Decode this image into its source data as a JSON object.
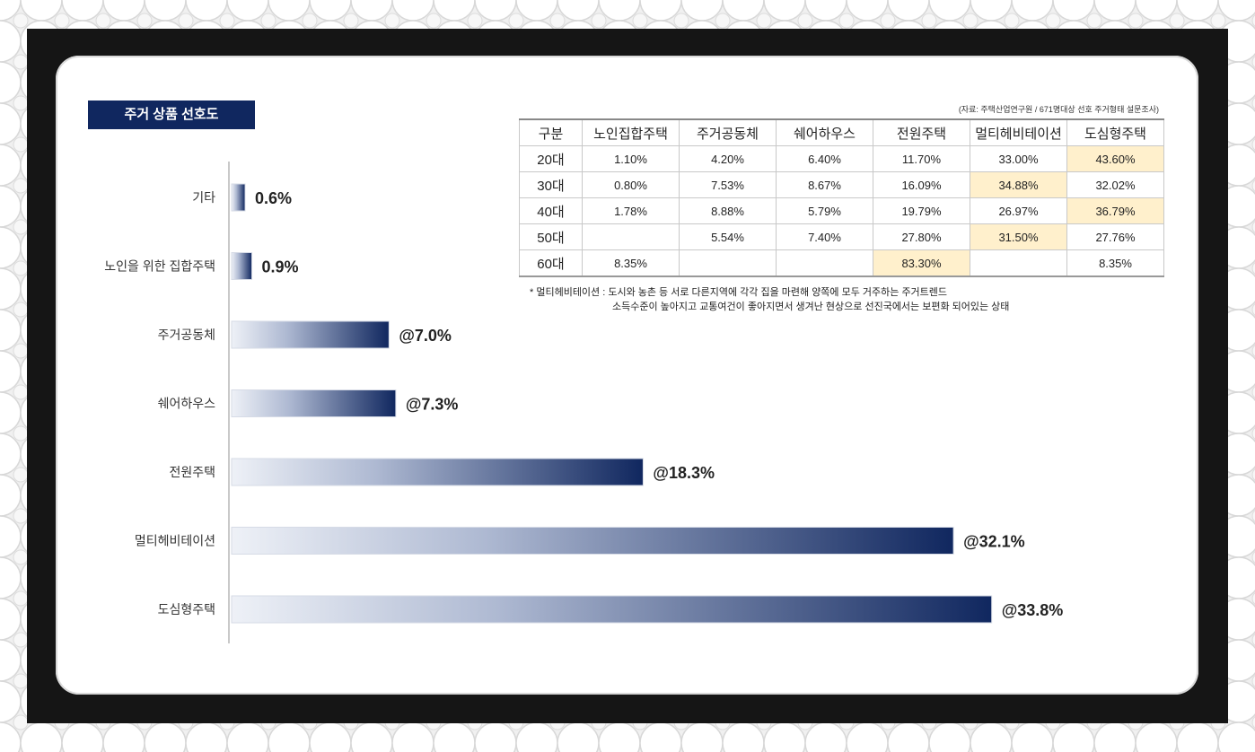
{
  "title": "주거 상품 선호도",
  "source_note": "(자료: 주택산업연구원 / 671명대상 선호 주거형태 설문조사)",
  "table": {
    "header": [
      "구분",
      "노인집합주택",
      "주거공동체",
      "쉐어하우스",
      "전원주택",
      "멀티헤비테이션",
      "도심형주택"
    ],
    "rows": [
      {
        "label": "20대",
        "cells": [
          "1.10%",
          "4.20%",
          "6.40%",
          "11.70%",
          "33.00%",
          "43.60%"
        ],
        "highlight": [
          5
        ]
      },
      {
        "label": "30대",
        "cells": [
          "0.80%",
          "7.53%",
          "8.67%",
          "16.09%",
          "34.88%",
          "32.02%"
        ],
        "highlight": [
          4
        ]
      },
      {
        "label": "40대",
        "cells": [
          "1.78%",
          "8.88%",
          "5.79%",
          "19.79%",
          "26.97%",
          "36.79%"
        ],
        "highlight": [
          5
        ]
      },
      {
        "label": "50대",
        "cells": [
          "",
          "5.54%",
          "7.40%",
          "27.80%",
          "31.50%",
          "27.76%"
        ],
        "highlight": [
          4
        ]
      },
      {
        "label": "60대",
        "cells": [
          "8.35%",
          "",
          "",
          "83.30%",
          "",
          "8.35%"
        ],
        "highlight": [
          3
        ]
      }
    ]
  },
  "footnote": {
    "line1": "* 멀티헤비테이션 : 도시와 농촌 등 서로 다른지역에 각각 집을 마련해 양쪽에 모두 거주하는 주거트렌드",
    "line2": "소득수준이 높아지고 교통여건이 좋아지면서 생겨난 현상으로 선진국에서는 보편화 되어있는 상태"
  },
  "colors": {
    "navy": "#10275f",
    "bar_start": "#eef1f7",
    "highlight": "#fff0cc"
  },
  "chart_data": {
    "type": "bar",
    "orientation": "horizontal",
    "categories": [
      "기타",
      "노인을 위한 집합주택",
      "주거공동체",
      "쉐어하우스",
      "전원주택",
      "멀티헤비테이션",
      "도심형주택"
    ],
    "values": [
      0.6,
      0.9,
      7.0,
      7.3,
      18.3,
      32.1,
      33.8
    ],
    "value_labels": [
      "0.6%",
      "0.9%",
      "@7.0%",
      "@7.3%",
      "@18.3%",
      "@32.1%",
      "@33.8%"
    ],
    "unit": "%",
    "xlim": [
      0,
      35
    ],
    "grid": false,
    "legend": "none"
  }
}
